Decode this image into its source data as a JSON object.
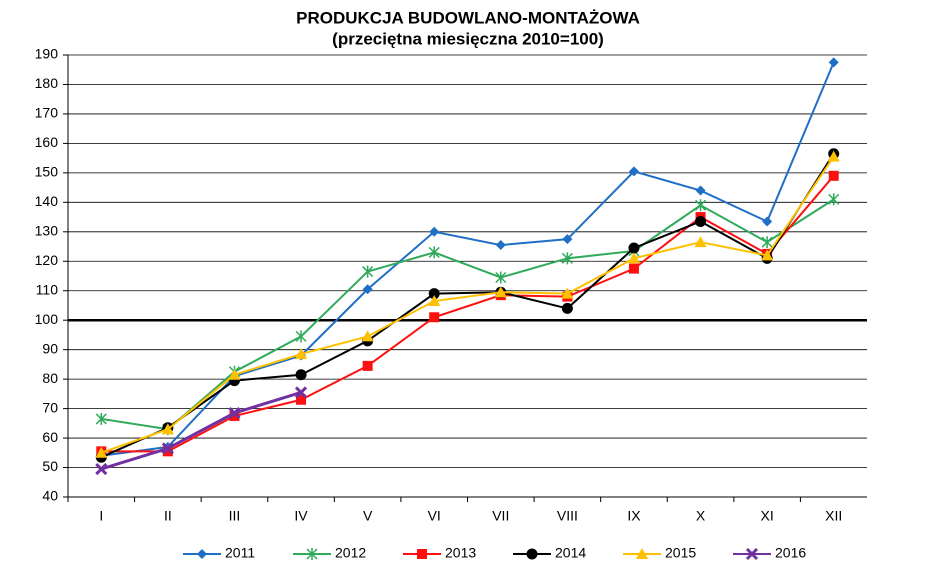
{
  "chart_data": {
    "type": "line",
    "title": "PRODUKCJA BUDOWLANO-MONTAŻOWA",
    "subtitle": "(przeciętna miesięczna 2010=100)",
    "categories": [
      "I",
      "II",
      "III",
      "IV",
      "V",
      "VI",
      "VII",
      "VIII",
      "IX",
      "X",
      "XI",
      "XII"
    ],
    "ylim": [
      40,
      190
    ],
    "yticks": [
      40,
      50,
      60,
      70,
      80,
      90,
      100,
      110,
      120,
      130,
      140,
      150,
      160,
      170,
      180,
      190
    ],
    "grid": true,
    "reference_line": 100,
    "legend": "bottom",
    "series": [
      {
        "name": "2011",
        "color": "#1f6fc5",
        "marker": "diamond",
        "values": [
          54,
          57,
          81,
          88,
          110.5,
          130,
          125.5,
          127.5,
          150.5,
          144,
          133.5,
          187.5
        ]
      },
      {
        "name": "2012",
        "color": "#2eaa5a",
        "marker": "asterisk",
        "values": [
          66.5,
          63,
          82.5,
          94.5,
          116.5,
          123,
          114.5,
          121,
          123.5,
          139,
          126.5,
          141
        ]
      },
      {
        "name": "2013",
        "color": "#ff1010",
        "marker": "square",
        "values": [
          55.5,
          55.5,
          67.5,
          73,
          84.5,
          101,
          108.5,
          108,
          117.5,
          135,
          122.5,
          149
        ]
      },
      {
        "name": "2014",
        "color": "#000000",
        "marker": "circle",
        "values": [
          53.5,
          63.5,
          79.5,
          81.5,
          93,
          109,
          109.5,
          104,
          124.5,
          133.5,
          121,
          156.5
        ]
      },
      {
        "name": "2015",
        "color": "#ffc000",
        "marker": "triangle",
        "values": [
          55,
          63,
          81.5,
          88.5,
          94.5,
          106.5,
          109.5,
          109,
          121,
          126.5,
          122,
          155.5
        ]
      },
      {
        "name": "2016",
        "color": "#7030a0",
        "marker": "x",
        "values": [
          49.5,
          56.5,
          68.5,
          75.5,
          null,
          null,
          null,
          null,
          null,
          null,
          null,
          null
        ]
      }
    ]
  }
}
